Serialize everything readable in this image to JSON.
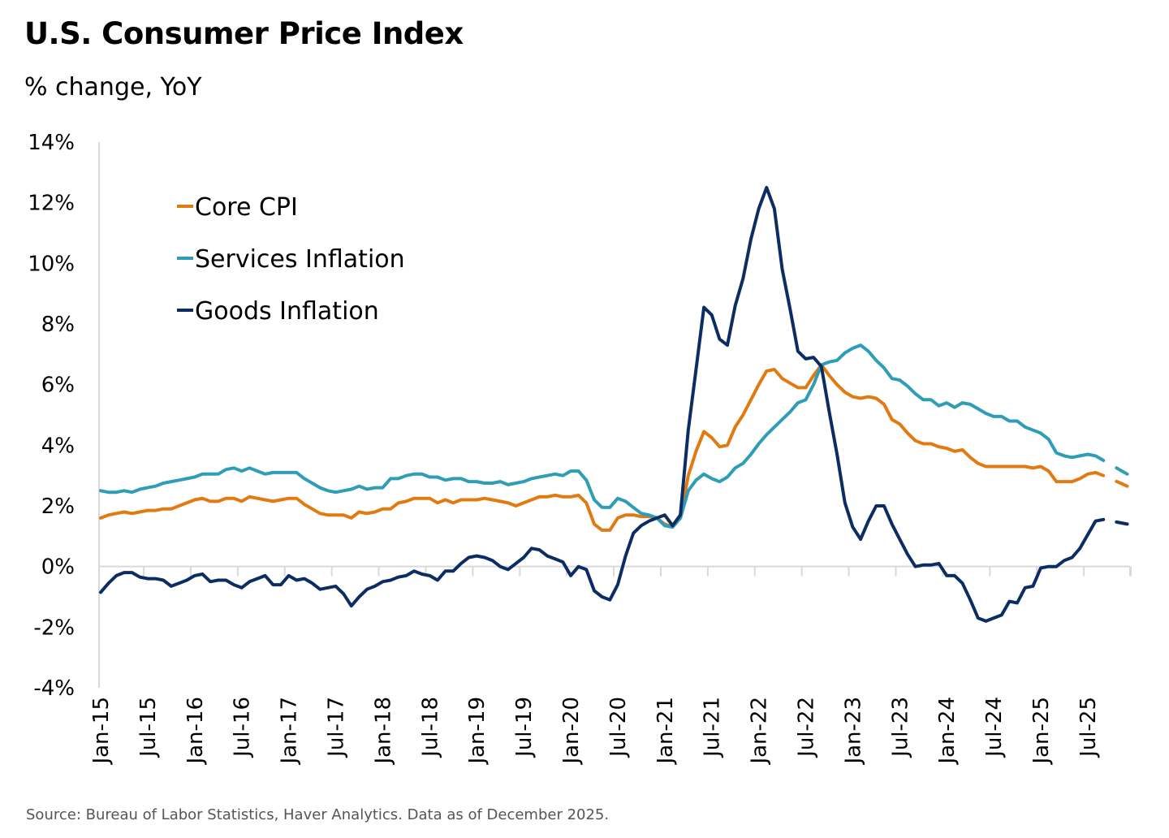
{
  "chart_data": {
    "type": "line",
    "title": "U.S. Consumer Price Index",
    "subtitle": "% change, YoY",
    "source": "Source: Bureau of Labor Statistics, Haver Analytics. Data as of December 2025.",
    "x_start": "Jan-15",
    "x_end": "Nov-25",
    "x_frequency": "monthly",
    "x_tick_labels": [
      "Jan-15",
      "Jul-15",
      "Jan-16",
      "Jul-16",
      "Jan-17",
      "Jul-17",
      "Jan-18",
      "Jul-18",
      "Jan-19",
      "Jul-19",
      "Jan-20",
      "Jul-20",
      "Jan-21",
      "Jul-21",
      "Jan-22",
      "Jul-22",
      "Jan-23",
      "Jul-23",
      "Jan-24",
      "Jul-24",
      "Jan-25",
      "Jul-25"
    ],
    "y_tick_labels": [
      "14%",
      "12%",
      "10%",
      "8%",
      "6%",
      "4%",
      "2%",
      "0%",
      "-2%",
      "-4%"
    ],
    "ylim": [
      -4,
      14
    ],
    "ylabel": "",
    "xlabel": "",
    "grid": false,
    "legend_placement": "top-left",
    "note": "",
    "series": [
      {
        "name": "Core CPI",
        "color": "#E27A12",
        "values": [
          1.6,
          1.7,
          1.75,
          1.8,
          1.75,
          1.8,
          1.85,
          1.85,
          1.9,
          1.9,
          2.0,
          2.1,
          2.2,
          2.25,
          2.15,
          2.15,
          2.25,
          2.25,
          2.15,
          2.3,
          2.25,
          2.2,
          2.15,
          2.2,
          2.25,
          2.25,
          2.05,
          1.9,
          1.75,
          1.7,
          1.7,
          1.7,
          1.6,
          1.8,
          1.75,
          1.8,
          1.9,
          1.9,
          2.1,
          2.15,
          2.25,
          2.25,
          2.25,
          2.1,
          2.2,
          2.1,
          2.2,
          2.2,
          2.2,
          2.25,
          2.2,
          2.15,
          2.1,
          2.0,
          2.1,
          2.2,
          2.3,
          2.3,
          2.35,
          2.3,
          2.3,
          2.35,
          2.1,
          1.4,
          1.2,
          1.2,
          1.6,
          1.7,
          1.7,
          1.65,
          1.65,
          1.6,
          1.4,
          1.3,
          1.6,
          3.0,
          3.8,
          4.45,
          4.25,
          3.95,
          4.0,
          4.6,
          5.0,
          5.5,
          6.0,
          6.45,
          6.5,
          6.2,
          6.05,
          5.9,
          5.9,
          6.3,
          6.65,
          6.3,
          6.0,
          5.75,
          5.6,
          5.55,
          5.6,
          5.55,
          5.35,
          4.85,
          4.7,
          4.4,
          4.15,
          4.05,
          4.05,
          3.95,
          3.9,
          3.8,
          3.85,
          3.6,
          3.4,
          3.3,
          3.3,
          3.3,
          3.3,
          3.3,
          3.3,
          3.25,
          3.3,
          3.15,
          2.8,
          2.8,
          2.8,
          2.9,
          3.05,
          3.1,
          3.0,
          null,
          2.65
        ]
      },
      {
        "name": "Services Inflation",
        "color": "#2E9DB6",
        "values": [
          2.5,
          2.45,
          2.45,
          2.5,
          2.45,
          2.55,
          2.6,
          2.65,
          2.75,
          2.8,
          2.85,
          2.9,
          2.95,
          3.05,
          3.05,
          3.05,
          3.2,
          3.25,
          3.15,
          3.25,
          3.15,
          3.05,
          3.1,
          3.1,
          3.1,
          3.1,
          2.9,
          2.75,
          2.6,
          2.5,
          2.45,
          2.5,
          2.55,
          2.65,
          2.55,
          2.6,
          2.6,
          2.9,
          2.9,
          3.0,
          3.05,
          3.05,
          2.95,
          2.95,
          2.85,
          2.9,
          2.9,
          2.8,
          2.8,
          2.75,
          2.75,
          2.8,
          2.7,
          2.75,
          2.8,
          2.9,
          2.95,
          3.0,
          3.05,
          3.0,
          3.15,
          3.15,
          2.85,
          2.2,
          1.95,
          1.95,
          2.25,
          2.15,
          1.95,
          1.75,
          1.7,
          1.6,
          1.35,
          1.3,
          1.6,
          2.5,
          2.85,
          3.05,
          2.9,
          2.8,
          2.95,
          3.25,
          3.4,
          3.7,
          4.05,
          4.35,
          4.6,
          4.85,
          5.1,
          5.4,
          5.5,
          6.0,
          6.65,
          6.75,
          6.8,
          7.05,
          7.2,
          7.3,
          7.1,
          6.8,
          6.55,
          6.2,
          6.15,
          5.95,
          5.7,
          5.5,
          5.5,
          5.3,
          5.4,
          5.25,
          5.4,
          5.35,
          5.2,
          5.05,
          4.95,
          4.95,
          4.8,
          4.8,
          4.6,
          4.5,
          4.4,
          4.2,
          3.75,
          3.65,
          3.6,
          3.65,
          3.7,
          3.65,
          3.5,
          null,
          3.05
        ]
      },
      {
        "name": "Goods Inflation",
        "color": "#0B2D63",
        "values": [
          -0.85,
          -0.55,
          -0.3,
          -0.2,
          -0.2,
          -0.35,
          -0.4,
          -0.4,
          -0.45,
          -0.65,
          -0.55,
          -0.45,
          -0.3,
          -0.25,
          -0.5,
          -0.45,
          -0.45,
          -0.6,
          -0.7,
          -0.5,
          -0.4,
          -0.3,
          -0.6,
          -0.6,
          -0.3,
          -0.45,
          -0.4,
          -0.55,
          -0.75,
          -0.7,
          -0.65,
          -0.9,
          -1.3,
          -1.0,
          -0.75,
          -0.65,
          -0.5,
          -0.45,
          -0.35,
          -0.3,
          -0.15,
          -0.25,
          -0.3,
          -0.45,
          -0.15,
          -0.15,
          0.1,
          0.3,
          0.35,
          0.3,
          0.2,
          0.0,
          -0.1,
          0.1,
          0.3,
          0.6,
          0.55,
          0.35,
          0.25,
          0.15,
          -0.3,
          0.0,
          -0.1,
          -0.8,
          -1.0,
          -1.1,
          -0.6,
          0.35,
          1.1,
          1.35,
          1.5,
          1.6,
          1.7,
          1.35,
          1.7,
          4.5,
          6.5,
          8.55,
          8.3,
          7.5,
          7.3,
          8.6,
          9.5,
          10.8,
          11.8,
          12.5,
          11.8,
          9.8,
          8.5,
          7.1,
          6.85,
          6.9,
          6.6,
          5.1,
          3.7,
          2.1,
          1.3,
          0.9,
          1.5,
          2.0,
          2.0,
          1.4,
          0.9,
          0.4,
          0.0,
          0.05,
          0.05,
          0.1,
          -0.3,
          -0.3,
          -0.55,
          -1.1,
          -1.7,
          -1.8,
          -1.7,
          -1.6,
          -1.15,
          -1.2,
          -0.7,
          -0.65,
          -0.05,
          0.0,
          0.0,
          0.2,
          0.3,
          0.6,
          1.05,
          1.5,
          1.55,
          null,
          1.4
        ]
      }
    ]
  }
}
